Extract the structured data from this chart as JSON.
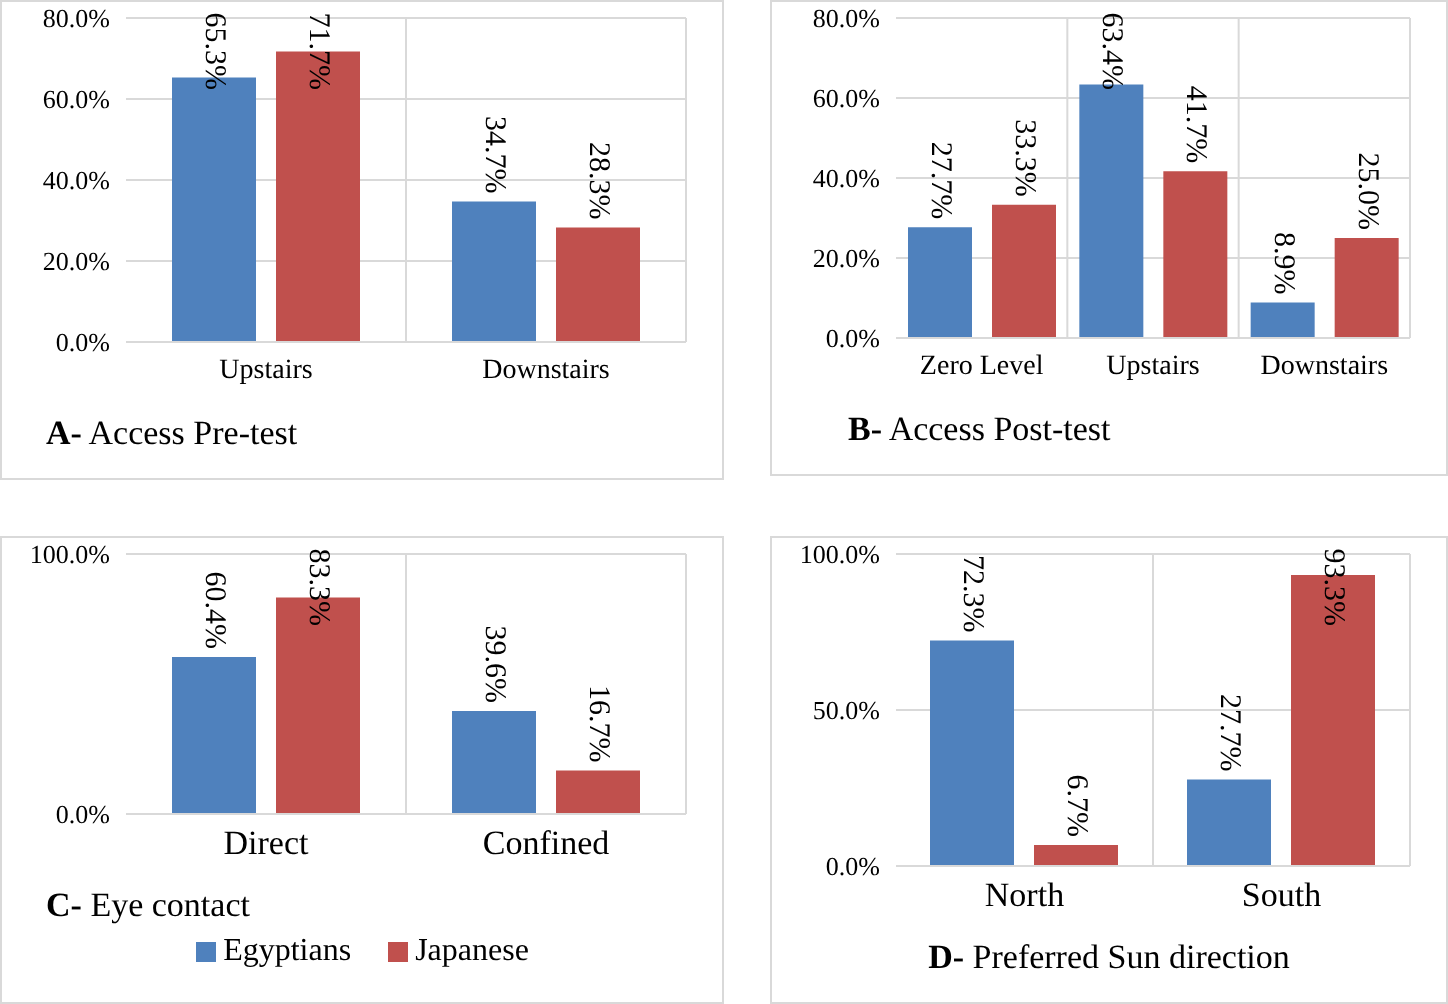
{
  "chart_data": [
    {
      "type": "bar",
      "title": "A- Access Pre-test",
      "categories": [
        "Upstairs",
        "Downstairs"
      ],
      "series": [
        {
          "color": "#4f81bd",
          "values": [
            65.3,
            34.7
          ],
          "value_labels": [
            "65.3%",
            "34.7%"
          ]
        },
        {
          "color": "#c0504d",
          "values": [
            71.7,
            28.3
          ],
          "value_labels": [
            "71.7%",
            "28.3%"
          ]
        }
      ],
      "ylim": [
        0,
        80
      ],
      "yticks": [
        {
          "value": 0,
          "label": "0.0%"
        },
        {
          "value": 20,
          "label": "20.0%"
        },
        {
          "value": 40,
          "label": "40.0%"
        },
        {
          "value": 60,
          "label": "60.0%"
        },
        {
          "value": 80,
          "label": "80.0%"
        }
      ],
      "grid": true
    },
    {
      "type": "bar",
      "title": "B- Access Post-test",
      "categories": [
        "Zero Level",
        "Upstairs",
        "Downstairs"
      ],
      "series": [
        {
          "color": "#4f81bd",
          "values": [
            27.7,
            63.4,
            8.9
          ],
          "value_labels": [
            "27.7%",
            "63.4%",
            "8.9%"
          ]
        },
        {
          "color": "#c0504d",
          "values": [
            33.3,
            41.7,
            25.0
          ],
          "value_labels": [
            "33.3%",
            "41.7%",
            "25.0%"
          ]
        }
      ],
      "ylim": [
        0,
        80
      ],
      "yticks": [
        {
          "value": 0,
          "label": "0.0%"
        },
        {
          "value": 20,
          "label": "20.0%"
        },
        {
          "value": 40,
          "label": "40.0%"
        },
        {
          "value": 60,
          "label": "60.0%"
        },
        {
          "value": 80,
          "label": "80.0%"
        }
      ],
      "grid": true
    },
    {
      "type": "bar",
      "title": "C- Eye contact",
      "categories": [
        "Direct",
        "Confined"
      ],
      "series": [
        {
          "name": "Egyptians",
          "color": "#4f81bd",
          "values": [
            60.4,
            39.6
          ],
          "value_labels": [
            "60.4%",
            "39.6%"
          ]
        },
        {
          "name": "Japanese",
          "color": "#c0504d",
          "values": [
            83.3,
            16.7
          ],
          "value_labels": [
            "83.3%",
            "16.7%"
          ]
        }
      ],
      "ylim": [
        0,
        100
      ],
      "yticks": [
        {
          "value": 0,
          "label": "0.0%"
        },
        {
          "value": 100,
          "label": "100.0%"
        }
      ],
      "grid": true,
      "legend": "bottom"
    },
    {
      "type": "bar",
      "title": "D- Preferred Sun direction",
      "categories": [
        "North",
        "South"
      ],
      "series": [
        {
          "color": "#4f81bd",
          "values": [
            72.3,
            27.7
          ],
          "value_labels": [
            "72.3%",
            "27.7%"
          ]
        },
        {
          "color": "#c0504d",
          "values": [
            6.7,
            93.3
          ],
          "value_labels": [
            "6.7%",
            "93.3%"
          ]
        }
      ],
      "ylim": [
        0,
        100
      ],
      "yticks": [
        {
          "value": 0,
          "label": "0.0%"
        },
        {
          "value": 50,
          "label": "50.0%"
        },
        {
          "value": 100,
          "label": "100.0%"
        }
      ],
      "grid": true
    }
  ]
}
